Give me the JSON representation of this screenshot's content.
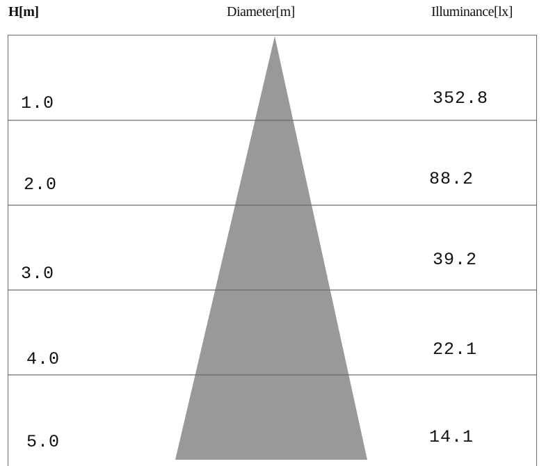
{
  "headers": {
    "height": "H[m]",
    "diameter": "Diameter[m]",
    "illuminance": "Illuminance[lx]"
  },
  "rows": [
    {
      "height": "1.0",
      "illuminance": "352.8"
    },
    {
      "height": "2.0",
      "illuminance": "88.2"
    },
    {
      "height": "3.0",
      "illuminance": "39.2"
    },
    {
      "height": "4.0",
      "illuminance": "22.1"
    },
    {
      "height": "5.0",
      "illuminance": "14.1"
    }
  ],
  "colors": {
    "cone": "#999999",
    "grid": "#6b6b6b",
    "text": "#111111"
  }
}
